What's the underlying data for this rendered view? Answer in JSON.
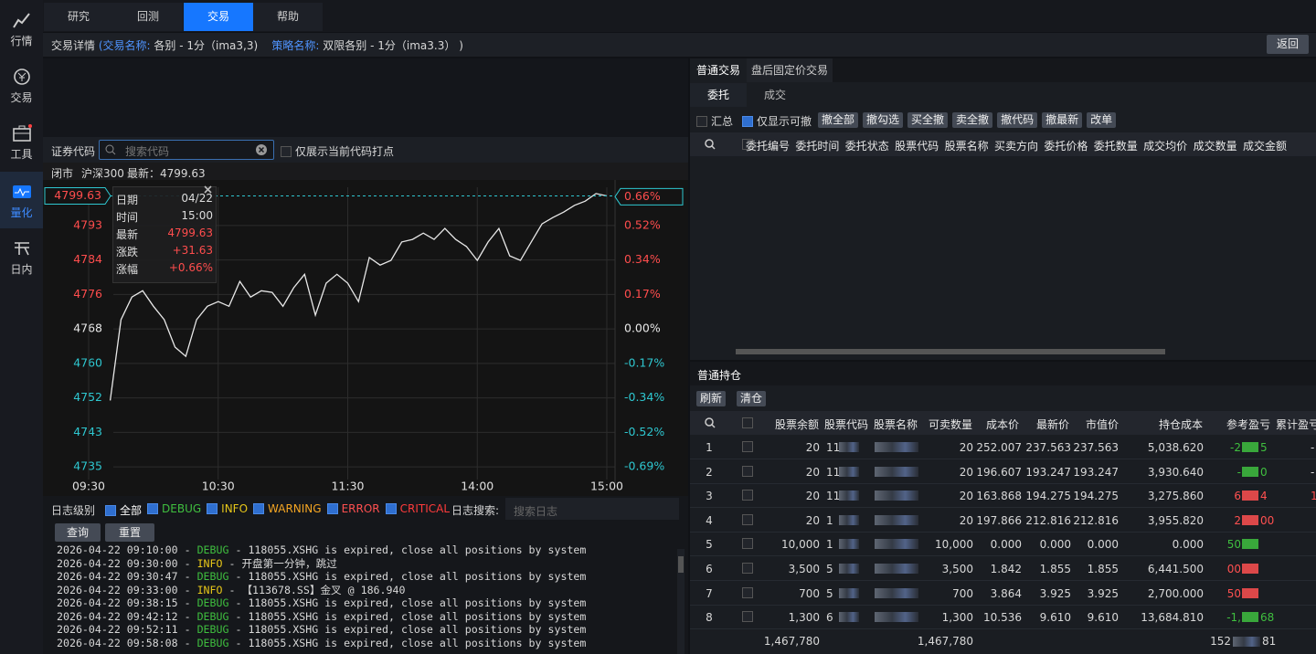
{
  "sidebar": [
    "行情",
    "交易",
    "工具",
    "量化",
    "日内"
  ],
  "tabs": [
    "研究",
    "回测",
    "交易",
    "帮助"
  ],
  "breadcrumb": {
    "title": "交易详情",
    "open": "(",
    "name_label": "交易名称:",
    "name": "各别 - 1分（ima3,3)",
    "strategy_label": "策略名称:",
    "strategy": "双限各别 - 1分（ima3.3）",
    "close": ")"
  },
  "back": "返回",
  "search": {
    "label": "证券代码",
    "placeholder": "搜索代码",
    "checkbox": "仅展示当前代码打点"
  },
  "quote": {
    "status": "闭市",
    "index": "沪深300",
    "latest": "最新：4799.63"
  },
  "tooltip": [
    [
      "日期",
      "04/22"
    ],
    [
      "时间",
      "15:00"
    ],
    [
      "最新",
      "4799.63"
    ],
    [
      "涨跌",
      "+31.63"
    ],
    [
      "涨幅",
      "+0.66%"
    ]
  ],
  "chart_data": {
    "type": "line",
    "x": [
      "09:30",
      "09:35",
      "09:40",
      "09:45",
      "09:50",
      "09:55",
      "10:00",
      "10:05",
      "10:10",
      "10:15",
      "10:20",
      "10:25",
      "10:30",
      "10:35",
      "10:40",
      "10:45",
      "10:50",
      "10:55",
      "11:00",
      "11:05",
      "11:10",
      "11:15",
      "11:20",
      "11:25",
      "11:30",
      "13:05",
      "13:10",
      "13:15",
      "13:20",
      "13:25",
      "13:30",
      "13:35",
      "13:40",
      "13:45",
      "13:50",
      "13:55",
      "14:00",
      "14:05",
      "14:10",
      "14:15",
      "14:20",
      "14:25",
      "14:30",
      "14:35",
      "14:40",
      "14:45",
      "14:50",
      "14:55",
      "15:00"
    ],
    "series": [
      {
        "name": "沪深300",
        "color": "#e8e8e8",
        "values": [
          null,
          null,
          4751.0,
          4770.2,
          4775.6,
          4777.1,
          4773.4,
          4770.2,
          4763.7,
          4761.5,
          4770.2,
          4773.4,
          4774.5,
          4773.4,
          4779.3,
          4775.6,
          4777.1,
          4776.7,
          4773.4,
          4777.8,
          4781.0,
          4771.3,
          4778.9,
          4781.0,
          4778.9,
          4774.5,
          4785.0,
          4783.2,
          4784.3,
          4788.7,
          4789.3,
          4790.8,
          4789.3,
          4791.9,
          4789.3,
          4787.6,
          4784.3,
          4788.7,
          4791.9,
          4785.4,
          4784.3,
          4788.7,
          4793.0,
          4794.5,
          4795.8,
          4797.4,
          4798.4,
          4800.2,
          4799.63
        ]
      }
    ],
    "ylim": [
      4732.2,
      4801.7
    ],
    "yticks": [
      {
        "value": 4735.2,
        "label": "4735"
      },
      {
        "value": 4743.4,
        "label": "4743"
      },
      {
        "value": 4751.6,
        "label": "4752"
      },
      {
        "value": 4759.8,
        "label": "4760"
      },
      {
        "value": 4768,
        "label": "4768"
      },
      {
        "value": 4776.2,
        "label": "4776"
      },
      {
        "value": 4784.4,
        "label": "4784"
      },
      {
        "value": 4792.6,
        "label": "4793"
      }
    ],
    "y2lim": [
      -0.751,
      0.707
    ],
    "y2ticks": [
      {
        "value": -0.688,
        "label": "-0.69%"
      },
      {
        "value": -0.516,
        "label": "-0.52%"
      },
      {
        "value": -0.344,
        "label": "-0.34%"
      },
      {
        "value": -0.172,
        "label": "-0.17%"
      },
      {
        "value": 0,
        "label": "0.00%"
      },
      {
        "value": 0.172,
        "label": "0.17%"
      },
      {
        "value": 0.344,
        "label": "0.34%"
      },
      {
        "value": 0.516,
        "label": "0.52%"
      }
    ],
    "xticks": [
      "09:30",
      "10:30",
      "11:30",
      "14:00",
      "15:00"
    ],
    "current": {
      "value": 4799.63,
      "label": "4799.63"
    },
    "current_pct": {
      "value": 0.66,
      "label": "0.66%"
    },
    "grid": true
  },
  "log": {
    "level_label": "日志级别",
    "levels": [
      {
        "name": "全部",
        "color": "#ffffff"
      },
      {
        "name": "DEBUG",
        "color": "#3fbf3f"
      },
      {
        "name": "INFO",
        "color": "#e6c619"
      },
      {
        "name": "WARNING",
        "color": "#f5a623"
      },
      {
        "name": "ERROR",
        "color": "#ff5050"
      },
      {
        "name": "CRITICAL",
        "color": "#ff3b3b"
      }
    ],
    "search_label": "日志搜索:",
    "search_placeholder": "搜索日志",
    "buttons": [
      "查询",
      "重置"
    ],
    "sep": " - ",
    "lines": [
      {
        "time": "2026-04-22 09:10:00",
        "level": "DEBUG",
        "message": "118055.XSHG is expired, close all positions by system"
      },
      {
        "time": "2026-04-22 09:30:00",
        "level": "INFO",
        "message": "开盘第一分钟，跳过"
      },
      {
        "time": "2026-04-22 09:30:47",
        "level": "DEBUG",
        "message": "118055.XSHG is expired, close all positions by system"
      },
      {
        "time": "2026-04-22 09:33:00",
        "level": "INFO",
        "message": "【113678.SS】金叉 @ 186.940"
      },
      {
        "time": "2026-04-22 09:38:15",
        "level": "DEBUG",
        "message": "118055.XSHG is expired, close all positions by system"
      },
      {
        "time": "2026-04-22 09:42:12",
        "level": "DEBUG",
        "message": "118055.XSHG is expired, close all positions by system"
      },
      {
        "time": "2026-04-22 09:52:11",
        "level": "DEBUG",
        "message": "118055.XSHG is expired, close all positions by system"
      },
      {
        "time": "2026-04-22 09:58:08",
        "level": "DEBUG",
        "message": "118055.XSHG is expired, close all positions by system"
      }
    ]
  },
  "trade": {
    "tabs": [
      "普通交易",
      "盘后固定价交易"
    ],
    "subtabs": [
      "委托",
      "成交"
    ],
    "checks": [
      "汇总",
      "仅显示可撤"
    ],
    "buttons": [
      "撤全部",
      "撤勾选",
      "买全撤",
      "卖全撤",
      "撤代码",
      "撤最新",
      "改单"
    ],
    "columns": [
      "委托编号",
      "委托时间",
      "委托状态",
      "股票代码",
      "股票名称",
      "买卖方向",
      "委托价格",
      "委托数量",
      "成交均价",
      "成交数量",
      "成交金额"
    ]
  },
  "positions": {
    "title": "普通持仓",
    "buttons": [
      "刷新",
      "清仓"
    ],
    "columns": [
      "股票余额",
      "股票代码",
      "股票名称",
      "可卖数量",
      "成本价",
      "最新价",
      "市值价",
      "持仓成本",
      "参考盈亏",
      "累计盈亏"
    ],
    "rows": [
      {
        "no": "1",
        "qty": "20",
        "code": "11",
        "avail": "20",
        "cost": "252.007",
        "last": "237.563",
        "mv": "237.563",
        "poscost": "5,038.620",
        "pnl": [
          "-2",
          "5"
        ],
        "pnl_color": "#3fbf3f",
        "cum": "-"
      },
      {
        "no": "2",
        "qty": "20",
        "code": "11",
        "avail": "20",
        "cost": "196.607",
        "last": "193.247",
        "mv": "193.247",
        "poscost": "3,930.640",
        "pnl": [
          "-",
          "0"
        ],
        "pnl_color": "#3fbf3f",
        "cum": "-"
      },
      {
        "no": "3",
        "qty": "20",
        "code": "11",
        "avail": "20",
        "cost": "163.868",
        "last": "194.275",
        "mv": "194.275",
        "poscost": "3,275.860",
        "pnl": [
          "6",
          "4"
        ],
        "pnl_color": "#ff5050",
        "cum": "1"
      },
      {
        "no": "4",
        "qty": "20",
        "code": "1",
        "avail": "20",
        "cost": "197.866",
        "last": "212.816",
        "mv": "212.816",
        "poscost": "3,955.820",
        "pnl": [
          "2",
          "00"
        ],
        "pnl_color": "#ff5050"
      },
      {
        "no": "5",
        "qty": "10,000",
        "code": "1",
        "avail": "10,000",
        "cost": "0.000",
        "last": "0.000",
        "mv": "0.000",
        "poscost": "0.000",
        "pnl": [
          "50"
        ],
        "pnl_color": "#3fbf3f"
      },
      {
        "no": "6",
        "qty": "3,500",
        "code": "5",
        "avail": "3,500",
        "cost": "1.842",
        "last": "1.855",
        "mv": "1.855",
        "poscost": "6,441.500",
        "pnl": [
          "00"
        ],
        "pnl_color": "#ff5050"
      },
      {
        "no": "7",
        "qty": "700",
        "code": "5",
        "avail": "700",
        "cost": "3.864",
        "last": "3.925",
        "mv": "3.925",
        "poscost": "2,700.000",
        "pnl": [
          "50"
        ],
        "pnl_color": "#ff5050"
      },
      {
        "no": "8",
        "qty": "1,300",
        "code": "6",
        "avail": "1,300",
        "cost": "10.536",
        "last": "9.610",
        "mv": "9.610",
        "poscost": "13,684.810",
        "pnl": [
          "-1,",
          "68"
        ],
        "pnl_color": "#3fbf3f"
      }
    ],
    "totals": {
      "qty": "1,467,780",
      "avail": "1,467,780",
      "pnl": [
        "152",
        "81"
      ]
    }
  }
}
